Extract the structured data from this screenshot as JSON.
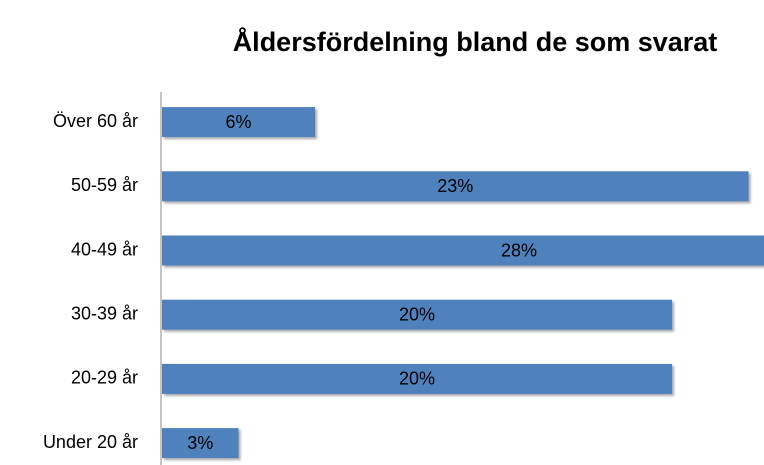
{
  "chart_data": {
    "type": "bar",
    "orientation": "horizontal",
    "title": "Åldersfördelning bland de som svarat",
    "categories": [
      "Över 60 år",
      "50-59 år",
      "40-49 år",
      "30-39 år",
      "20-29 år",
      "Under 20 år"
    ],
    "values": [
      6,
      23,
      28,
      20,
      20,
      3
    ],
    "value_labels": [
      "6%",
      "23%",
      "28%",
      "20%",
      "20%",
      "3%"
    ],
    "color": "#4f81bd"
  }
}
